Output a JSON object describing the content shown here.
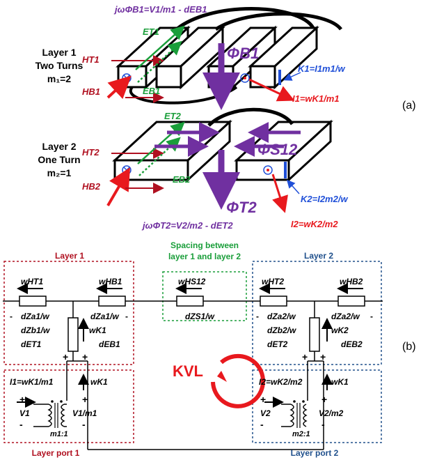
{
  "panel_labels": {
    "a": "(a)",
    "b": "(b)"
  },
  "top": {
    "layer1_label": [
      "Layer 1",
      "Two Turns",
      "m₁=2"
    ],
    "layer2_label": [
      "Layer 2",
      "One Turn",
      "m₂=1"
    ],
    "eq_B1": "jωΦB1=V1/m1 - dEB1",
    "eq_T2": "jωΦT2=V2/m2 - dET2",
    "HT1": "HT1",
    "HB1": "HB1",
    "HT2": "HT2",
    "HB2": "HB2",
    "ET1": "ET1",
    "EB1": "EB1",
    "ET2": "ET2",
    "EB2": "EB2",
    "PhiB1": "ΦB1",
    "PhiT2": "ΦT2",
    "PhiS12": "ΦS12",
    "K1": "K1=I1m1/w",
    "K2": "K2=I2m2/w",
    "I1": "I1=wK1/m1",
    "I2": "I2=wK2/m2"
  },
  "circuit": {
    "layer1_title": "Layer 1",
    "layer2_title": "Layer 2",
    "spacing_title": [
      "Spacing between",
      "layer 1 and layer  2"
    ],
    "wHT1": "wHT1",
    "wHB1": "wHB1",
    "wHS12": "wHS12",
    "wHT2": "wHT2",
    "wHB2": "wHB2",
    "dZa1_left": "dZa1/w",
    "dZa1_right": "dZa1/w",
    "dZb1": "dZb1/w",
    "dET1": "dET1",
    "dEB1": "dEB1",
    "wK1_top": "wK1",
    "dZS1": "dZS1/w",
    "dZa2_left": "dZa2/w",
    "dZa2_right": "dZa2/w",
    "dZb2": "dZb2/w",
    "dET2": "dET2",
    "dEB2": "dEB2",
    "wK2": "wK2",
    "KVL": "KVL",
    "I1_eq": "I1=wK1/m1",
    "I2_eq": "I2=wK2/m2",
    "wK1_left": "wK1",
    "wK1_right": "wK1",
    "V1": "V1",
    "V1m1": "V1/m1",
    "V2": "V2",
    "V2m2": "V2/m2",
    "ratio1": "m1:1",
    "ratio2": "m2:1",
    "port1": "Layer port 1",
    "port2": "Layer port 2"
  },
  "colors": {
    "red": "#e8191e",
    "green": "#1a9e3a",
    "blue": "#1f4fd8",
    "purple": "#7030a0",
    "dark_blue": "#20508c",
    "dark_red": "#b01020"
  }
}
